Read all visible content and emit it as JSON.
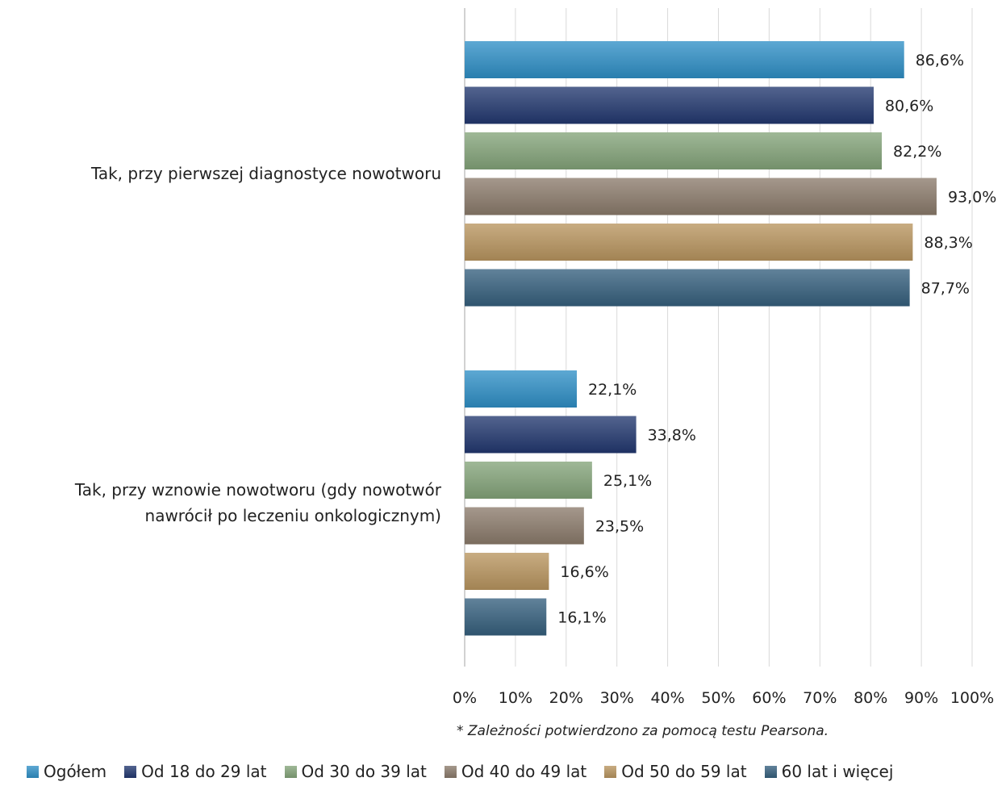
{
  "chart_data": {
    "type": "bar",
    "orientation": "horizontal",
    "categories": [
      "Tak, przy pierwszej diagnostyce nowotworu",
      "Tak, przy wznowie nowotworu (gdy nowotwór nawrócił po leczeniu onkologicznym)"
    ],
    "category_lines": [
      [
        "Tak, przy pierwszej diagnostyce nowotworu"
      ],
      [
        "Tak, przy wznowie nowotworu (gdy nowotwór",
        "nawrócił po leczeniu onkologicznym)"
      ]
    ],
    "series": [
      {
        "name": "Ogółem",
        "color": "#2f8fc6",
        "values": [
          86.6,
          22.1
        ],
        "labels": [
          "86,6%",
          "22,1%"
        ]
      },
      {
        "name": "Od 18 do 29 lat",
        "color": "#22386f",
        "values": [
          80.6,
          33.8
        ],
        "labels": [
          "80,6%",
          "33,8%"
        ]
      },
      {
        "name": "Od 30 do 39 lat",
        "color": "#84a47a",
        "values": [
          82.2,
          25.1
        ],
        "labels": [
          "82,2%",
          "25,1%"
        ]
      },
      {
        "name": "Od 40 do 49 lat",
        "color": "#8b7b6b",
        "values": [
          93.0,
          23.5
        ],
        "labels": [
          "93,0%",
          "23,5%"
        ]
      },
      {
        "name": "Od 50 do 59 lat",
        "color": "#b8955f",
        "values": [
          88.3,
          16.6
        ],
        "labels": [
          "88,3%",
          "16,6%"
        ]
      },
      {
        "name": "60 lat i więcej",
        "color": "#355f7d",
        "values": [
          87.7,
          16.1
        ],
        "labels": [
          "87,7%",
          "16,1%"
        ]
      }
    ],
    "xlim": [
      0,
      100
    ],
    "xticks": [
      0,
      10,
      20,
      30,
      40,
      50,
      60,
      70,
      80,
      90,
      100
    ],
    "xtick_labels": [
      "0%",
      "10%",
      "20%",
      "30%",
      "40%",
      "50%",
      "60%",
      "70%",
      "80%",
      "90%",
      "100%"
    ],
    "grid": true,
    "legend_position": "bottom"
  },
  "footnote": "* Zależności potwierdzono za pomocą testu Pearsona."
}
